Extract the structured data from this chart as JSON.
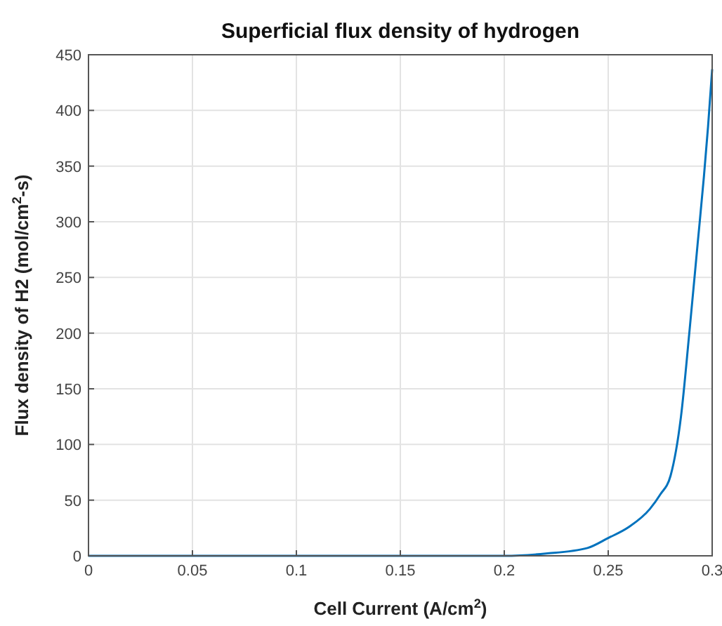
{
  "chart_data": {
    "type": "line",
    "title": "Superficial flux density of hydrogen",
    "xlabel": "Cell Current (A/cm$^{2}$)",
    "ylabel": "Flux density of H2 (mol/cm$^{2}$-s)",
    "series": [
      {
        "color": "#0072bd",
        "x": [
          0,
          0.1,
          0.2,
          0.22,
          0.24,
          0.25,
          0.26,
          0.27,
          0.275,
          0.28,
          0.285,
          0.289,
          0.293,
          0.296,
          0.298,
          0.3
        ],
        "values": [
          0,
          0,
          0,
          2,
          7,
          16,
          26,
          42,
          55,
          72,
          125,
          200,
          280,
          340,
          385,
          437
        ]
      }
    ],
    "xlim": [
      0,
      0.3
    ],
    "xticks": [
      0,
      0.05,
      0.1,
      0.15,
      0.2,
      0.25,
      0.3
    ],
    "ylim": [
      0,
      450
    ],
    "yticks": [
      0,
      50,
      100,
      150,
      200,
      250,
      300,
      350,
      400,
      450
    ],
    "grid": true,
    "marker": "none",
    "line_style": "solid"
  }
}
